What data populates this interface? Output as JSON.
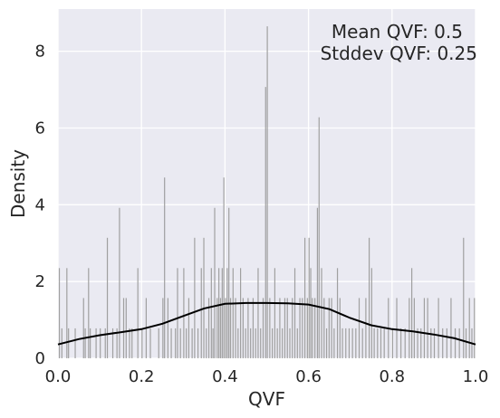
{
  "chart_data": {
    "type": "bar",
    "xlabel": "QVF",
    "ylabel": "Density",
    "xlim": [
      0,
      1
    ],
    "ylim": [
      0,
      9.1
    ],
    "grid": true,
    "background": "#eaeaf2",
    "bar_color": "#a0a0a0",
    "kde_color": "#000000",
    "xticks": [
      "0.0",
      "0.2",
      "0.4",
      "0.6",
      "0.8",
      "1.0"
    ],
    "yticks": [
      "0",
      "2",
      "4",
      "6",
      "8"
    ],
    "annotation": {
      "mean_text": "Mean QVF: 0.5",
      "stddev_text": "Stddev QVF: 0.25"
    },
    "bins": [
      [
        0.002,
        2.35
      ],
      [
        0.008,
        0.78
      ],
      [
        0.02,
        2.35
      ],
      [
        0.024,
        0.78
      ],
      [
        0.04,
        0.78
      ],
      [
        0.06,
        1.57
      ],
      [
        0.064,
        0.78
      ],
      [
        0.072,
        2.35
      ],
      [
        0.076,
        0.78
      ],
      [
        0.09,
        0.78
      ],
      [
        0.1,
        0.78
      ],
      [
        0.112,
        0.78
      ],
      [
        0.117,
        3.14
      ],
      [
        0.13,
        0.78
      ],
      [
        0.14,
        0.78
      ],
      [
        0.146,
        3.92
      ],
      [
        0.156,
        1.57
      ],
      [
        0.162,
        1.57
      ],
      [
        0.17,
        0.78
      ],
      [
        0.176,
        0.78
      ],
      [
        0.19,
        2.35
      ],
      [
        0.2,
        0.78
      ],
      [
        0.21,
        1.57
      ],
      [
        0.22,
        0.78
      ],
      [
        0.24,
        0.78
      ],
      [
        0.25,
        1.57
      ],
      [
        0.254,
        4.71
      ],
      [
        0.262,
        1.57
      ],
      [
        0.27,
        0.78
      ],
      [
        0.28,
        0.78
      ],
      [
        0.285,
        2.35
      ],
      [
        0.292,
        0.78
      ],
      [
        0.3,
        2.35
      ],
      [
        0.306,
        0.78
      ],
      [
        0.312,
        1.57
      ],
      [
        0.32,
        0.78
      ],
      [
        0.326,
        3.14
      ],
      [
        0.334,
        0.78
      ],
      [
        0.342,
        2.35
      ],
      [
        0.348,
        3.14
      ],
      [
        0.354,
        0.78
      ],
      [
        0.36,
        1.57
      ],
      [
        0.366,
        2.35
      ],
      [
        0.37,
        0.78
      ],
      [
        0.374,
        3.92
      ],
      [
        0.38,
        1.57
      ],
      [
        0.384,
        2.35
      ],
      [
        0.388,
        1.57
      ],
      [
        0.392,
        2.35
      ],
      [
        0.396,
        4.71
      ],
      [
        0.4,
        1.57
      ],
      [
        0.404,
        2.35
      ],
      [
        0.408,
        3.92
      ],
      [
        0.412,
        1.57
      ],
      [
        0.418,
        2.35
      ],
      [
        0.424,
        1.57
      ],
      [
        0.43,
        0.78
      ],
      [
        0.436,
        2.35
      ],
      [
        0.442,
        1.57
      ],
      [
        0.448,
        0.78
      ],
      [
        0.454,
        1.57
      ],
      [
        0.46,
        0.78
      ],
      [
        0.466,
        1.57
      ],
      [
        0.472,
        0.78
      ],
      [
        0.478,
        2.35
      ],
      [
        0.484,
        0.78
      ],
      [
        0.49,
        1.57
      ],
      [
        0.496,
        7.07
      ],
      [
        0.5,
        8.65
      ],
      [
        0.506,
        1.57
      ],
      [
        0.512,
        0.78
      ],
      [
        0.518,
        2.35
      ],
      [
        0.524,
        0.78
      ],
      [
        0.53,
        1.57
      ],
      [
        0.536,
        0.78
      ],
      [
        0.542,
        1.57
      ],
      [
        0.548,
        1.57
      ],
      [
        0.554,
        0.78
      ],
      [
        0.56,
        1.57
      ],
      [
        0.566,
        2.35
      ],
      [
        0.572,
        0.78
      ],
      [
        0.578,
        1.57
      ],
      [
        0.584,
        1.57
      ],
      [
        0.59,
        3.14
      ],
      [
        0.596,
        1.57
      ],
      [
        0.6,
        3.14
      ],
      [
        0.604,
        2.35
      ],
      [
        0.608,
        1.57
      ],
      [
        0.614,
        1.57
      ],
      [
        0.62,
        3.92
      ],
      [
        0.624,
        6.28
      ],
      [
        0.63,
        2.35
      ],
      [
        0.636,
        1.57
      ],
      [
        0.642,
        0.78
      ],
      [
        0.648,
        1.57
      ],
      [
        0.654,
        1.57
      ],
      [
        0.66,
        0.78
      ],
      [
        0.668,
        2.35
      ],
      [
        0.674,
        1.57
      ],
      [
        0.68,
        0.78
      ],
      [
        0.688,
        0.78
      ],
      [
        0.696,
        0.78
      ],
      [
        0.704,
        0.78
      ],
      [
        0.712,
        0.78
      ],
      [
        0.72,
        1.57
      ],
      [
        0.728,
        0.78
      ],
      [
        0.736,
        1.57
      ],
      [
        0.744,
        3.14
      ],
      [
        0.75,
        2.35
      ],
      [
        0.756,
        0.78
      ],
      [
        0.764,
        0.78
      ],
      [
        0.772,
        0.78
      ],
      [
        0.78,
        0.78
      ],
      [
        0.79,
        1.57
      ],
      [
        0.8,
        0.78
      ],
      [
        0.81,
        1.57
      ],
      [
        0.82,
        0.78
      ],
      [
        0.83,
        0.78
      ],
      [
        0.84,
        1.57
      ],
      [
        0.846,
        2.35
      ],
      [
        0.852,
        1.57
      ],
      [
        0.86,
        0.78
      ],
      [
        0.868,
        0.78
      ],
      [
        0.876,
        1.57
      ],
      [
        0.884,
        1.57
      ],
      [
        0.892,
        0.78
      ],
      [
        0.9,
        0.78
      ],
      [
        0.91,
        1.57
      ],
      [
        0.92,
        0.78
      ],
      [
        0.93,
        0.78
      ],
      [
        0.94,
        1.57
      ],
      [
        0.95,
        0.78
      ],
      [
        0.96,
        0.78
      ],
      [
        0.97,
        3.14
      ],
      [
        0.976,
        0.78
      ],
      [
        0.984,
        1.57
      ],
      [
        0.99,
        0.78
      ],
      [
        0.996,
        1.57
      ]
    ],
    "kde": {
      "x": [
        0,
        0.05,
        0.1,
        0.15,
        0.2,
        0.25,
        0.3,
        0.35,
        0.4,
        0.45,
        0.5,
        0.55,
        0.6,
        0.65,
        0.7,
        0.75,
        0.8,
        0.85,
        0.9,
        0.95,
        1.0
      ],
      "y": [
        0.36,
        0.5,
        0.6,
        0.68,
        0.76,
        0.9,
        1.1,
        1.3,
        1.42,
        1.44,
        1.44,
        1.43,
        1.4,
        1.28,
        1.05,
        0.86,
        0.76,
        0.7,
        0.62,
        0.52,
        0.36
      ]
    }
  }
}
